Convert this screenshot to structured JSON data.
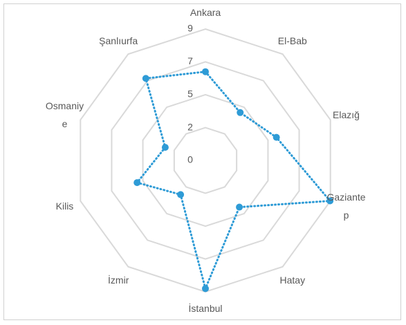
{
  "chart_data": {
    "type": "radar",
    "categories": [
      "Ankara",
      "El-Bab",
      "Elazığ",
      "Gaziante\np",
      "Hatay",
      "İstanbul",
      "İzmir",
      "Kilis",
      "Osmaniy\ne",
      "Şanlıurfa"
    ],
    "series": [
      {
        "color": "#2e9bd6",
        "values": [
          6.3,
          4.2,
          5.3,
          9.3,
          4.1,
          9.1,
          3.0,
          5.1,
          3.0,
          7.2
        ]
      }
    ],
    "ylim": [
      0,
      9.33
    ],
    "yticks": [
      0,
      {
        "value": 2.33,
        "label": "2"
      },
      {
        "value": 4.67,
        "label": "5"
      },
      7,
      {
        "value": 9.33,
        "label": "9"
      }
    ],
    "grid": true
  }
}
